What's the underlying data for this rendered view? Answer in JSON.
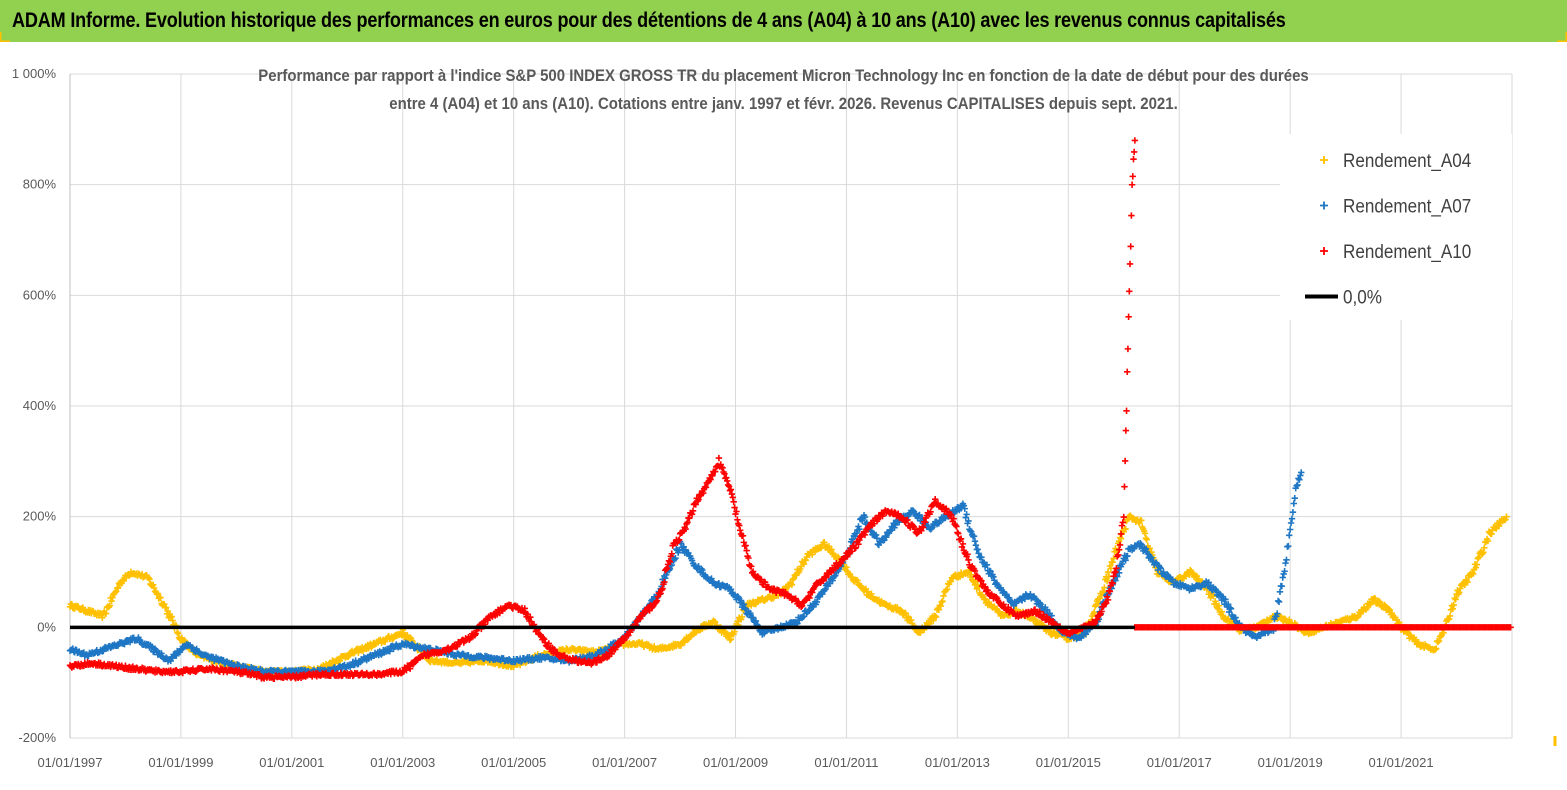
{
  "banner": {
    "title": "ADAM Informe. Evolution historique des performances en euros pour des détentions de 4 ans (A04) à 10 ans (A10) avec les revenus connus capitalisés"
  },
  "colors": {
    "banner": "#92d050",
    "a04": "#ffc000",
    "a07": "#1f77c4",
    "a10": "#ff0000",
    "zero": "#000000",
    "grid": "#d9d9d9",
    "text": "#595959"
  },
  "chart_data": {
    "type": "scatter",
    "title_line1": "Performance par rapport à l'indice S&P 500 INDEX GROSS TR  du placement Micron Technology Inc en fonction de la date de début pour des durées",
    "title_line2": "entre 4 (A04) et 10 ans (A10). Cotations entre janv. 1997 et févr. 2026. Revenus CAPITALISES depuis sept. 2021.",
    "ylim": [
      -200,
      1000
    ],
    "xlim": [
      1997.0,
      2023.0
    ],
    "y_ticks": [
      -200,
      0,
      200,
      400,
      600,
      800,
      1000
    ],
    "y_tick_labels": [
      "-200%",
      "0%",
      "200%",
      "400%",
      "600%",
      "800%",
      "1 000%"
    ],
    "x_ticks": [
      1997,
      1999,
      2001,
      2003,
      2005,
      2007,
      2009,
      2011,
      2013,
      2015,
      2017,
      2019,
      2021
    ],
    "x_tick_labels": [
      "01/01/1997",
      "01/01/1999",
      "01/01/2001",
      "01/01/2003",
      "01/01/2005",
      "01/01/2007",
      "01/01/2009",
      "01/01/2011",
      "01/01/2013",
      "01/01/2015",
      "01/01/2017",
      "01/01/2019",
      "01/01/2021"
    ],
    "legend": [
      "Rendement_A04",
      "Rendement_A07",
      "Rendement_A10",
      "0,0%"
    ],
    "legend_position": "top-right",
    "series": [
      {
        "name": "Rendement_A04",
        "x": [
          1997.0,
          1997.3,
          1997.6,
          1997.9,
          1998.1,
          1998.4,
          1998.7,
          1999.0,
          1999.3,
          1999.6,
          2000.0,
          2000.5,
          2001.0,
          2001.5,
          2002.0,
          2002.5,
          2003.0,
          2003.5,
          2004.0,
          2004.5,
          2005.0,
          2005.5,
          2006.0,
          2006.5,
          2007.0,
          2007.3,
          2007.6,
          2008.0,
          2008.3,
          2008.6,
          2008.9,
          2009.2,
          2009.5,
          2009.8,
          2010.0,
          2010.3,
          2010.6,
          2010.9,
          2011.1,
          2011.4,
          2011.7,
          2012.0,
          2012.3,
          2012.6,
          2012.9,
          2013.2,
          2013.5,
          2013.8,
          2014.1,
          2014.4,
          2014.7,
          2015.0,
          2015.3,
          2015.6,
          2015.9,
          2016.1,
          2016.3,
          2016.6,
          2016.9,
          2017.2,
          2017.5,
          2017.8,
          2018.1,
          2018.4,
          2018.7,
          2019.0,
          2019.3,
          2019.6,
          2019.9,
          2020.2,
          2020.5,
          2020.8,
          2021.0,
          2021.3,
          2021.6,
          2021.8,
          2022.0,
          2022.3,
          2022.6,
          2022.9
        ],
        "y": [
          40,
          30,
          20,
          80,
          100,
          90,
          40,
          -20,
          -50,
          -60,
          -70,
          -80,
          -80,
          -75,
          -50,
          -30,
          -10,
          -60,
          -65,
          -60,
          -70,
          -50,
          -40,
          -45,
          -30,
          -30,
          -40,
          -30,
          -5,
          10,
          -20,
          40,
          50,
          60,
          80,
          130,
          150,
          120,
          90,
          60,
          40,
          30,
          -10,
          20,
          90,
          100,
          50,
          20,
          30,
          10,
          -10,
          -20,
          -10,
          60,
          150,
          200,
          190,
          100,
          80,
          100,
          70,
          20,
          -5,
          0,
          20,
          10,
          -10,
          0,
          10,
          20,
          50,
          30,
          0,
          -30,
          -40,
          0,
          60,
          100,
          170,
          200
        ],
        "marker": "+"
      },
      {
        "name": "Rendement_A07",
        "x": [
          1997.0,
          1997.3,
          1997.6,
          1997.9,
          1998.2,
          1998.5,
          1998.8,
          1999.1,
          1999.4,
          1999.7,
          2000.0,
          2000.5,
          2001.0,
          2001.5,
          2002.0,
          2002.5,
          2003.0,
          2003.5,
          2004.0,
          2004.5,
          2005.0,
          2005.5,
          2006.0,
          2006.5,
          2007.0,
          2007.3,
          2007.6,
          2008.0,
          2008.3,
          2008.6,
          2008.9,
          2009.2,
          2009.5,
          2009.8,
          2010.1,
          2010.4,
          2010.7,
          2011.0,
          2011.3,
          2011.6,
          2011.9,
          2012.2,
          2012.5,
          2012.8,
          2013.1,
          2013.4,
          2013.7,
          2014.0,
          2014.3,
          2014.6,
          2014.9,
          2015.2,
          2015.5,
          2015.8,
          2016.1,
          2016.3,
          2016.6,
          2016.9,
          2017.2,
          2017.5,
          2017.8,
          2018.1,
          2018.4,
          2018.7,
          2018.9,
          2019.0,
          2019.1,
          2019.2
        ],
        "y": [
          -40,
          -50,
          -40,
          -30,
          -20,
          -40,
          -60,
          -30,
          -50,
          -60,
          -70,
          -80,
          -80,
          -80,
          -70,
          -50,
          -30,
          -40,
          -50,
          -55,
          -60,
          -55,
          -60,
          -50,
          -20,
          20,
          60,
          150,
          110,
          80,
          70,
          30,
          -10,
          0,
          10,
          40,
          80,
          130,
          200,
          150,
          190,
          210,
          180,
          200,
          220,
          130,
          80,
          40,
          60,
          30,
          -10,
          -20,
          10,
          80,
          140,
          150,
          110,
          80,
          70,
          80,
          50,
          0,
          -20,
          0,
          100,
          180,
          250,
          280
        ],
        "marker": "+"
      },
      {
        "name": "Rendement_A10",
        "x": [
          1997.0,
          1997.4,
          1997.8,
          1998.2,
          1998.6,
          1999.0,
          1999.5,
          2000.0,
          2000.5,
          2001.0,
          2001.5,
          2002.0,
          2002.5,
          2003.0,
          2003.4,
          2003.8,
          2004.2,
          2004.6,
          2004.9,
          2005.2,
          2005.5,
          2005.8,
          2006.1,
          2006.4,
          2006.7,
          2007.0,
          2007.3,
          2007.6,
          2007.9,
          2008.1,
          2008.3,
          2008.5,
          2008.7,
          2008.9,
          2009.1,
          2009.3,
          2009.6,
          2009.9,
          2010.2,
          2010.5,
          2010.8,
          2011.1,
          2011.4,
          2011.7,
          2012.0,
          2012.3,
          2012.6,
          2012.9,
          2013.2,
          2013.5,
          2013.8,
          2014.1,
          2014.4,
          2014.7,
          2015.0,
          2015.3,
          2015.5,
          2015.7,
          2015.85,
          2016.0,
          2016.05,
          2016.1,
          2016.15,
          2016.2
        ],
        "y": [
          -70,
          -65,
          -70,
          -75,
          -80,
          -80,
          -75,
          -80,
          -90,
          -90,
          -85,
          -85,
          -85,
          -80,
          -50,
          -40,
          -20,
          20,
          40,
          30,
          -20,
          -50,
          -60,
          -65,
          -50,
          -20,
          20,
          50,
          150,
          180,
          230,
          260,
          300,
          250,
          170,
          100,
          70,
          60,
          40,
          80,
          110,
          140,
          180,
          210,
          200,
          170,
          230,
          200,
          120,
          70,
          40,
          20,
          30,
          10,
          -10,
          0,
          10,
          50,
          100,
          200,
          400,
          600,
          800,
          880
        ],
        "marker": "+"
      }
    ],
    "flat_segment": {
      "series": "Rendement_A10",
      "x_start": 2016.2,
      "x_end": 2023.0,
      "y": 0
    },
    "reference_line": {
      "name": "0,0%",
      "y": 0
    }
  }
}
